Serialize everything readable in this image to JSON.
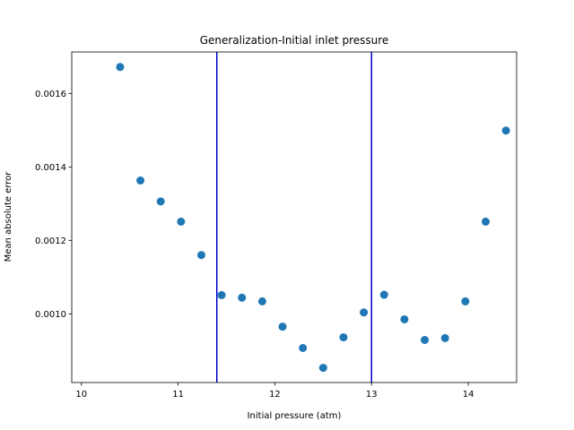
{
  "chart_data": {
    "type": "scatter",
    "title": "Generalization-Initial inlet pressure",
    "xlabel": "Initial pressure (atm)",
    "ylabel": "Mean absolute error",
    "xlim": [
      9.9,
      14.5
    ],
    "ylim": [
      0.000813,
      0.001713
    ],
    "xticks": [
      10,
      11,
      12,
      13,
      14
    ],
    "xtick_labels": [
      "10",
      "11",
      "12",
      "13",
      "14"
    ],
    "yticks": [
      0.001,
      0.0012,
      0.0014,
      0.0016
    ],
    "ytick_labels": [
      "0.0010",
      "0.0012",
      "0.0014",
      "0.0016"
    ],
    "grid": false,
    "marker_color": "#1f77b4",
    "vlines": [
      {
        "x": 11.4,
        "color": "#0000cc"
      },
      {
        "x": 13.0,
        "color": "#0000cc"
      }
    ],
    "series": [
      {
        "x": [
          10.4,
          10.61,
          10.82,
          11.03,
          11.24,
          11.45,
          11.66,
          11.87,
          12.08,
          12.29,
          12.5,
          12.71,
          12.92,
          13.13,
          13.34,
          13.55,
          13.76,
          13.97,
          14.18,
          14.39
        ],
        "y": [
          0.001672,
          0.001363,
          0.001306,
          0.001251,
          0.00116,
          0.001051,
          0.001044,
          0.001034,
          0.000965,
          0.000907,
          0.000853,
          0.000936,
          0.001004,
          0.001052,
          0.000985,
          0.000929,
          0.000934,
          0.001034,
          0.001251,
          0.001499
        ]
      }
    ]
  }
}
